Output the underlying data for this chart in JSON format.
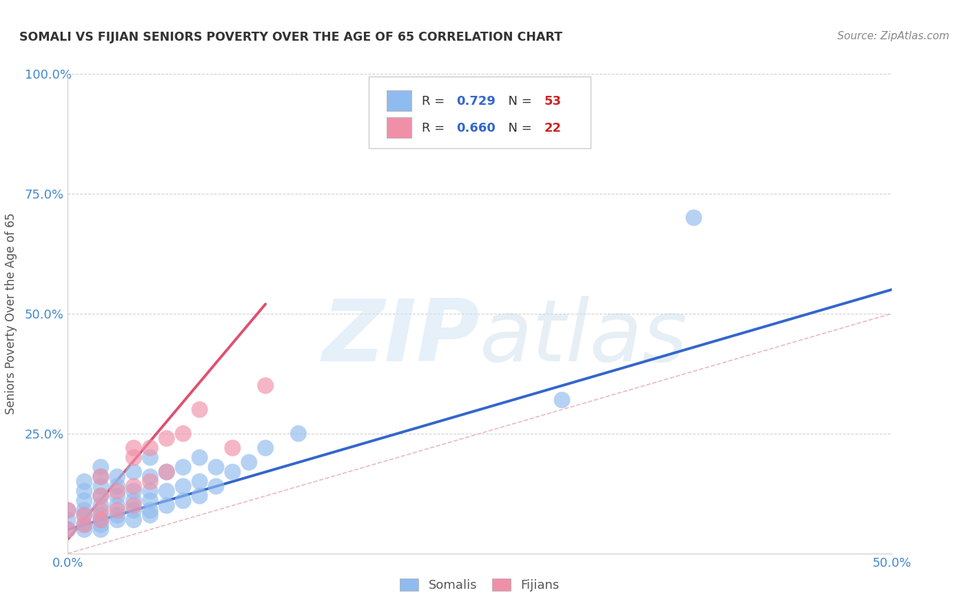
{
  "title": "SOMALI VS FIJIAN SENIORS POVERTY OVER THE AGE OF 65 CORRELATION CHART",
  "source": "Source: ZipAtlas.com",
  "ylabel": "Seniors Poverty Over the Age of 65",
  "xlim": [
    0,
    0.5
  ],
  "ylim": [
    0,
    1.0
  ],
  "ytick_values": [
    0.0,
    0.25,
    0.5,
    0.75,
    1.0
  ],
  "ytick_labels": [
    "",
    "25.0%",
    "50.0%",
    "75.0%",
    "100.0%"
  ],
  "xtick_values": [
    0.0,
    0.5
  ],
  "xtick_labels": [
    "0.0%",
    "50.0%"
  ],
  "somali_color": "#90bbee",
  "fijian_color": "#f090a8",
  "somali_line_color": "#3366cc",
  "fijian_line_color": "#e05070",
  "diag_color": "#e8b0bb",
  "somali_R": "0.729",
  "somali_N": "53",
  "fijian_R": "0.660",
  "fijian_N": "22",
  "legend_R_color": "#3366cc",
  "legend_N_color": "#cc2222",
  "tick_color": "#4488cc",
  "watermark_zip": "ZIP",
  "watermark_atlas": "atlas",
  "background_color": "#ffffff",
  "grid_color": "#cccccc",
  "somali_x": [
    0.0,
    0.0,
    0.0,
    0.01,
    0.01,
    0.01,
    0.01,
    0.01,
    0.01,
    0.01,
    0.02,
    0.02,
    0.02,
    0.02,
    0.02,
    0.02,
    0.02,
    0.02,
    0.02,
    0.03,
    0.03,
    0.03,
    0.03,
    0.03,
    0.03,
    0.04,
    0.04,
    0.04,
    0.04,
    0.04,
    0.05,
    0.05,
    0.05,
    0.05,
    0.05,
    0.05,
    0.06,
    0.06,
    0.06,
    0.07,
    0.07,
    0.07,
    0.08,
    0.08,
    0.08,
    0.09,
    0.09,
    0.1,
    0.11,
    0.12,
    0.14,
    0.3,
    0.38
  ],
  "somali_y": [
    0.05,
    0.07,
    0.09,
    0.05,
    0.06,
    0.08,
    0.09,
    0.11,
    0.13,
    0.15,
    0.05,
    0.06,
    0.07,
    0.08,
    0.1,
    0.12,
    0.14,
    0.16,
    0.18,
    0.07,
    0.08,
    0.1,
    0.12,
    0.14,
    0.16,
    0.07,
    0.09,
    0.11,
    0.13,
    0.17,
    0.08,
    0.09,
    0.11,
    0.13,
    0.16,
    0.2,
    0.1,
    0.13,
    0.17,
    0.11,
    0.14,
    0.18,
    0.12,
    0.15,
    0.2,
    0.14,
    0.18,
    0.17,
    0.19,
    0.22,
    0.25,
    0.32,
    0.7
  ],
  "fijian_x": [
    0.0,
    0.0,
    0.01,
    0.01,
    0.02,
    0.02,
    0.02,
    0.02,
    0.03,
    0.03,
    0.04,
    0.04,
    0.04,
    0.04,
    0.05,
    0.05,
    0.06,
    0.06,
    0.07,
    0.08,
    0.1,
    0.12
  ],
  "fijian_y": [
    0.05,
    0.09,
    0.06,
    0.08,
    0.07,
    0.09,
    0.12,
    0.16,
    0.09,
    0.13,
    0.1,
    0.14,
    0.2,
    0.22,
    0.15,
    0.22,
    0.17,
    0.24,
    0.25,
    0.3,
    0.22,
    0.35
  ],
  "somali_line_x": [
    0.0,
    0.5
  ],
  "somali_line_y": [
    0.05,
    0.55
  ],
  "fijian_line_x": [
    0.0,
    0.12
  ],
  "fijian_line_y": [
    0.03,
    0.52
  ]
}
